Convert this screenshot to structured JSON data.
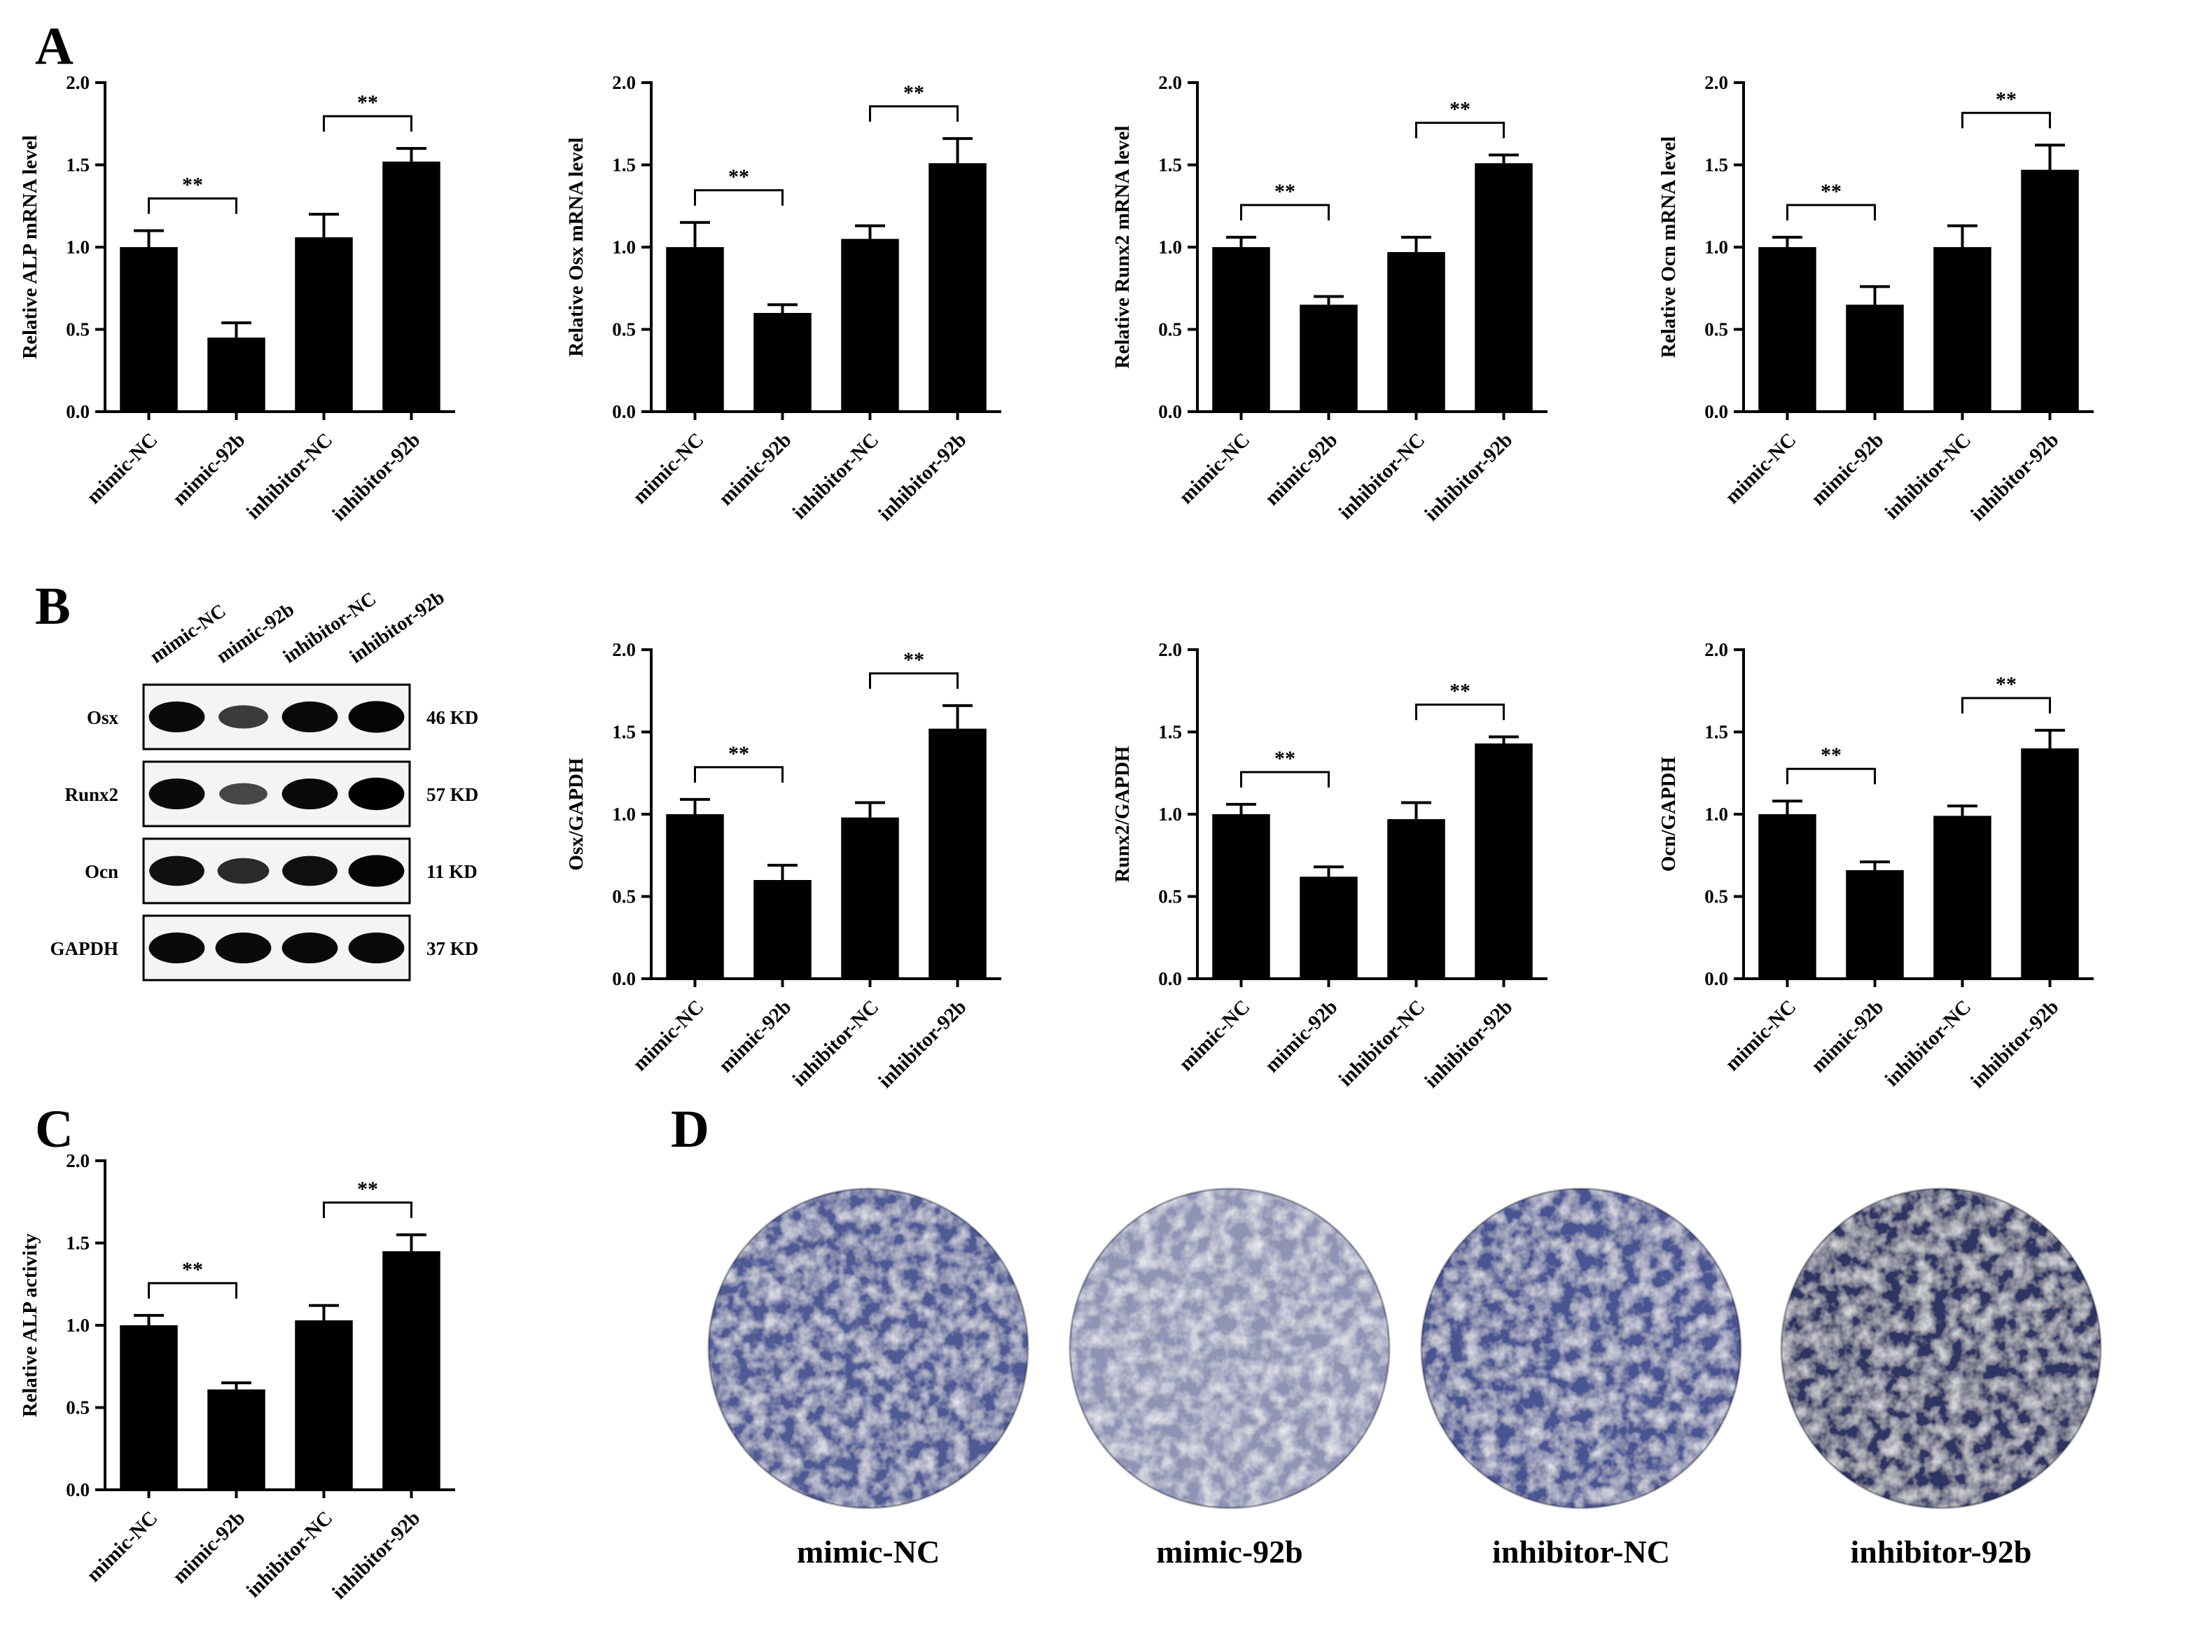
{
  "panels": {
    "A": "A",
    "B": "B",
    "C": "C",
    "D": "D"
  },
  "groups": [
    "mimic-NC",
    "mimic-92b",
    "inhibitor-NC",
    "inhibitor-92b"
  ],
  "significance": "**",
  "chart_data": [
    {
      "id": "a1",
      "type": "bar",
      "title": "",
      "xlabel": "",
      "ylabel": "Relative ALP mRNA level",
      "categories": [
        "mimic-NC",
        "mimic-92b",
        "inhibitor-NC",
        "inhibitor-92b"
      ],
      "values": [
        1.0,
        0.45,
        1.06,
        1.52
      ],
      "errors": [
        0.1,
        0.09,
        0.14,
        0.08
      ],
      "ylim": [
        0,
        2.0
      ],
      "yticks": [
        "0.0",
        "0.5",
        "1.0",
        "1.5",
        "2.0"
      ],
      "comparisons": [
        [
          0,
          1,
          "**"
        ],
        [
          2,
          3,
          "**"
        ]
      ]
    },
    {
      "id": "a2",
      "type": "bar",
      "title": "",
      "xlabel": "",
      "ylabel": "Relative Osx mRNA level",
      "categories": [
        "mimic-NC",
        "mimic-92b",
        "inhibitor-NC",
        "inhibitor-92b"
      ],
      "values": [
        1.0,
        0.6,
        1.05,
        1.51
      ],
      "errors": [
        0.15,
        0.05,
        0.08,
        0.15
      ],
      "ylim": [
        0,
        2.0
      ],
      "yticks": [
        "0.0",
        "0.5",
        "1.0",
        "1.5",
        "2.0"
      ],
      "comparisons": [
        [
          0,
          1,
          "**"
        ],
        [
          2,
          3,
          "**"
        ]
      ]
    },
    {
      "id": "a3",
      "type": "bar",
      "title": "",
      "xlabel": "",
      "ylabel": "Relative Runx2 mRNA level",
      "categories": [
        "mimic-NC",
        "mimic-92b",
        "inhibitor-NC",
        "inhibitor-92b"
      ],
      "values": [
        1.0,
        0.65,
        0.97,
        1.51
      ],
      "errors": [
        0.06,
        0.05,
        0.09,
        0.05
      ],
      "ylim": [
        0,
        2.0
      ],
      "yticks": [
        "0.0",
        "0.5",
        "1.0",
        "1.5",
        "2.0"
      ],
      "comparisons": [
        [
          0,
          1,
          "**"
        ],
        [
          2,
          3,
          "**"
        ]
      ]
    },
    {
      "id": "a4",
      "type": "bar",
      "title": "",
      "xlabel": "",
      "ylabel": "Relative Ocn mRNA level",
      "categories": [
        "mimic-NC",
        "mimic-92b",
        "inhibitor-NC",
        "inhibitor-92b"
      ],
      "values": [
        1.0,
        0.65,
        1.0,
        1.47
      ],
      "errors": [
        0.06,
        0.11,
        0.13,
        0.15
      ],
      "ylim": [
        0,
        2.0
      ],
      "yticks": [
        "0.0",
        "0.5",
        "1.0",
        "1.5",
        "2.0"
      ],
      "comparisons": [
        [
          0,
          1,
          "**"
        ],
        [
          2,
          3,
          "**"
        ]
      ]
    },
    {
      "id": "b1",
      "type": "bar",
      "title": "",
      "xlabel": "",
      "ylabel": "Osx/GAPDH",
      "categories": [
        "mimic-NC",
        "mimic-92b",
        "inhibitor-NC",
        "inhibitor-92b"
      ],
      "values": [
        1.0,
        0.6,
        0.98,
        1.52
      ],
      "errors": [
        0.09,
        0.09,
        0.09,
        0.14
      ],
      "ylim": [
        0,
        2.0
      ],
      "yticks": [
        "0.0",
        "0.5",
        "1.0",
        "1.5",
        "2.0"
      ],
      "comparisons": [
        [
          0,
          1,
          "**"
        ],
        [
          2,
          3,
          "**"
        ]
      ]
    },
    {
      "id": "b2",
      "type": "bar",
      "title": "",
      "xlabel": "",
      "ylabel": "Runx2/GAPDH",
      "categories": [
        "mimic-NC",
        "mimic-92b",
        "inhibitor-NC",
        "inhibitor-92b"
      ],
      "values": [
        1.0,
        0.62,
        0.97,
        1.43
      ],
      "errors": [
        0.06,
        0.06,
        0.1,
        0.04
      ],
      "ylim": [
        0,
        2.0
      ],
      "yticks": [
        "0.0",
        "0.5",
        "1.0",
        "1.5",
        "2.0"
      ],
      "comparisons": [
        [
          0,
          1,
          "**"
        ],
        [
          2,
          3,
          "**"
        ]
      ]
    },
    {
      "id": "b3",
      "type": "bar",
      "title": "",
      "xlabel": "",
      "ylabel": "Ocn/GAPDH",
      "categories": [
        "mimic-NC",
        "mimic-92b",
        "inhibitor-NC",
        "inhibitor-92b"
      ],
      "values": [
        1.0,
        0.66,
        0.99,
        1.4
      ],
      "errors": [
        0.08,
        0.05,
        0.06,
        0.11
      ],
      "ylim": [
        0,
        2.0
      ],
      "yticks": [
        "0.0",
        "0.5",
        "1.0",
        "1.5",
        "2.0"
      ],
      "comparisons": [
        [
          0,
          1,
          "**"
        ],
        [
          2,
          3,
          "**"
        ]
      ]
    },
    {
      "id": "c1",
      "type": "bar",
      "title": "",
      "xlabel": "",
      "ylabel": "Relative ALP activity",
      "categories": [
        "mimic-NC",
        "mimic-92b",
        "inhibitor-NC",
        "inhibitor-92b"
      ],
      "values": [
        1.0,
        0.61,
        1.03,
        1.45
      ],
      "errors": [
        0.06,
        0.04,
        0.09,
        0.1
      ],
      "ylim": [
        0,
        2.0
      ],
      "yticks": [
        "0.0",
        "0.5",
        "1.0",
        "1.5",
        "2.0"
      ],
      "comparisons": [
        [
          0,
          1,
          "**"
        ],
        [
          2,
          3,
          "**"
        ]
      ]
    }
  ],
  "western_blot": {
    "lanes": [
      "mimic-NC",
      "mimic-92b",
      "inhibitor-NC",
      "inhibitor-92b"
    ],
    "rows": [
      {
        "protein": "Osx",
        "size": "46 KD",
        "intensity": [
          1.0,
          0.55,
          1.0,
          1.05
        ]
      },
      {
        "protein": "Runx2",
        "size": "57 KD",
        "intensity": [
          1.0,
          0.45,
          1.0,
          1.1
        ]
      },
      {
        "protein": "Ocn",
        "size": "11 KD",
        "intensity": [
          0.95,
          0.7,
          0.95,
          1.05
        ]
      },
      {
        "protein": "GAPDH",
        "size": "37 KD",
        "intensity": [
          1.0,
          1.0,
          1.0,
          1.0
        ]
      }
    ]
  },
  "staining": {
    "labels": [
      "mimic-NC",
      "mimic-92b",
      "inhibitor-NC",
      "inhibitor-92b"
    ],
    "colors": [
      "#4f5a95",
      "#8f93b4",
      "#4a5592",
      "#2f3463"
    ]
  }
}
